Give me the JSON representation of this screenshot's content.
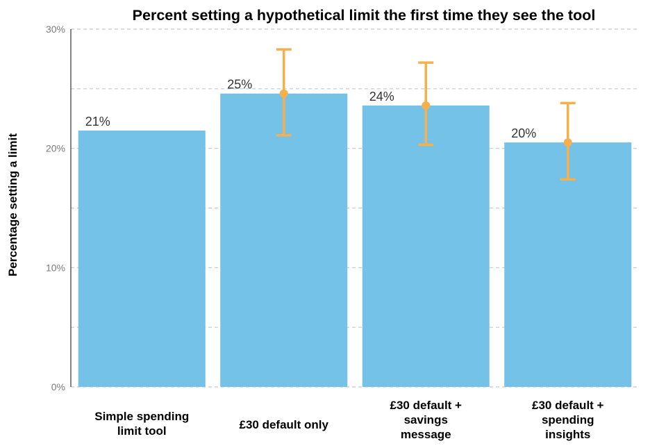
{
  "chart_data": {
    "type": "bar",
    "title": "Percent setting a hypothetical limit the first time they see the tool",
    "ylabel": "Percentage setting  a limit",
    "xlabel": "",
    "ylim": [
      0,
      30
    ],
    "yticks": [
      0,
      10,
      20,
      30
    ],
    "ytick_labels": [
      "0%",
      "10%",
      "20%",
      "30%"
    ],
    "grid": true,
    "categories": [
      [
        "Simple spending",
        "limit tool"
      ],
      [
        "£30 default only"
      ],
      [
        "£30 default +",
        "savings",
        "message"
      ],
      [
        "£30 default +",
        "spending",
        "insights"
      ]
    ],
    "values": [
      21.5,
      24.6,
      23.6,
      20.5
    ],
    "data_labels": [
      "21%",
      "25%",
      "24%",
      "20%"
    ],
    "error_bars": [
      null,
      [
        21.1,
        28.3
      ],
      [
        20.3,
        27.2
      ],
      [
        17.4,
        23.8
      ]
    ],
    "colors": {
      "bar": "#74c2e8",
      "error": "#f5b04b",
      "axis": "#333333",
      "grid": "#c8c8c8"
    }
  }
}
